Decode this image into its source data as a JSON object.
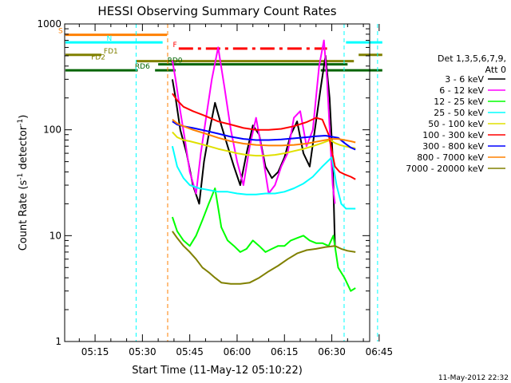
{
  "chart_data": {
    "type": "line",
    "title": "HESSI Observing Summary Count Rates",
    "xlabel": "Start Time (11-May-12 05:10:22)",
    "ylabel_main": "Count Rate (s",
    "ylabel_sup1": "-1",
    "ylabel_mid": " detector",
    "ylabel_sup2": "-1",
    "ylabel_end": ")",
    "timestamp": "11-May-2012 22:32",
    "y_scale": "log",
    "ylim": [
      1,
      1000
    ],
    "xlim_minutes": [
      5.37,
      102.0
    ],
    "x_origin": "05:10:22",
    "y_ticks": [
      {
        "label": "1",
        "value": 1
      },
      {
        "label": "10",
        "value": 10
      },
      {
        "label": "100",
        "value": 100
      },
      {
        "label": "1000",
        "value": 1000
      }
    ],
    "x_ticks": [
      {
        "label": "05:15",
        "minute": 15
      },
      {
        "label": "05:30",
        "minute": 30
      },
      {
        "label": "05:45",
        "minute": 45
      },
      {
        "label": "06:00",
        "minute": 60
      },
      {
        "label": "06:15",
        "minute": 75
      },
      {
        "label": "06:30",
        "minute": 90
      },
      {
        "label": "06:45",
        "minute": 105
      }
    ],
    "legend": {
      "header": [
        "Det 1,3,5,6,7,9,",
        "Att 0"
      ],
      "entries": [
        {
          "label": "3 - 6 keV",
          "color": "#000000"
        },
        {
          "label": "6 - 12 keV",
          "color": "#ff00ff"
        },
        {
          "label": "12 - 25 keV",
          "color": "#00ff00"
        },
        {
          "label": "25 - 50 keV",
          "color": "#00ffff"
        },
        {
          "label": "50 - 100 keV",
          "color": "#e0e000"
        },
        {
          "label": "100 - 300 keV",
          "color": "#ff0000"
        },
        {
          "label": "300 - 800 keV",
          "color": "#0000ff"
        },
        {
          "label": "800 - 7000 keV",
          "color": "#ff8000"
        },
        {
          "label": "7000 - 20000 keV",
          "color": "#808000"
        }
      ]
    },
    "flag_bars": [
      {
        "label": "S",
        "color": "#ff8000",
        "segments": [
          [
            5.6,
            37.8
          ]
        ],
        "y": 790,
        "dashed": false
      },
      {
        "label": "N",
        "color": "#00ffff",
        "segments": [
          [
            5.6,
            36.4
          ],
          [
            94.5,
            106.0
          ]
        ],
        "y": 670,
        "dashed": false
      },
      {
        "label": "F",
        "color": "#ff0000",
        "segments": [
          [
            41.5,
            88.5
          ]
        ],
        "y": 585,
        "dashed": true
      },
      {
        "label": "FD1",
        "color": "#808000",
        "segments": [
          [
            5.6,
            17.0
          ],
          [
            98.5,
            106.0
          ]
        ],
        "y": 510,
        "dashed": false
      },
      {
        "label": "FD2",
        "color": "#808000",
        "segments": [
          [
            28.0,
            97.0
          ]
        ],
        "y": 445,
        "dashed": false
      },
      {
        "label": "RD0",
        "color": "#006400",
        "segments": [
          [
            35.0,
            95.0
          ]
        ],
        "y": 415,
        "dashed": false
      },
      {
        "label": "RD6",
        "color": "#006400",
        "segments": [
          [
            5.6,
            28.5
          ],
          [
            34.0,
            40.5
          ],
          [
            86.5,
            106.0
          ]
        ],
        "y": 365,
        "dashed": false
      }
    ],
    "vlines": [
      {
        "minute": 28.0,
        "color": "#00ffff"
      },
      {
        "minute": 38.0,
        "color": "#ff8000"
      },
      {
        "minute": 93.9,
        "color": "#00ffff"
      },
      {
        "minute": 104.5,
        "color": "#00ffff"
      }
    ],
    "series": [
      {
        "name": "3 - 6 keV",
        "color": "#000000",
        "x": [
          39.5,
          40.5,
          42,
          44,
          46,
          48,
          49.5,
          51,
          53,
          55,
          57,
          59,
          61,
          63,
          65,
          67,
          69,
          71,
          73,
          75,
          77,
          79,
          81,
          83,
          85,
          86.5,
          88,
          89.3,
          90.2,
          91
        ],
        "y": [
          300,
          200,
          100,
          60,
          30,
          20,
          50,
          90,
          180,
          110,
          70,
          45,
          30,
          60,
          110,
          90,
          45,
          35,
          40,
          55,
          90,
          120,
          60,
          45,
          120,
          250,
          500,
          200,
          60,
          8
        ]
      },
      {
        "name": "6 - 12 keV",
        "color": "#ff00ff",
        "x": [
          39.5,
          40.5,
          42,
          43.5,
          45,
          47,
          48.5,
          50,
          52,
          54,
          56,
          58,
          60,
          62,
          64,
          66,
          68,
          70,
          72,
          74,
          76,
          78,
          80,
          82,
          84,
          86,
          87.5,
          88.5,
          89.5,
          90.3,
          91
        ],
        "y": [
          450,
          300,
          150,
          80,
          40,
          25,
          60,
          120,
          300,
          600,
          250,
          100,
          50,
          30,
          70,
          130,
          60,
          25,
          30,
          45,
          60,
          130,
          150,
          70,
          100,
          400,
          700,
          300,
          80,
          30,
          20
        ]
      },
      {
        "name": "12 - 25 keV",
        "color": "#00ff00",
        "x": [
          39.5,
          41,
          43,
          45,
          47,
          49,
          51,
          53,
          55,
          57,
          59,
          61,
          63,
          65,
          67,
          69,
          71,
          73,
          75,
          77,
          79,
          81,
          83,
          85,
          87,
          89,
          90.5,
          92,
          94,
          96,
          97.5
        ],
        "y": [
          15,
          11,
          9,
          8,
          10,
          14,
          20,
          28,
          12,
          9,
          8,
          7,
          7.5,
          9,
          8,
          7,
          7.5,
          8,
          8,
          9,
          9.5,
          10,
          9,
          8.5,
          8.5,
          8,
          10,
          5,
          4,
          3,
          3.2
        ]
      },
      {
        "name": "25 - 50 keV",
        "color": "#00ffff",
        "x": [
          39.5,
          41,
          43,
          45,
          48,
          51,
          54,
          57,
          60,
          63,
          66,
          69,
          72,
          75,
          78,
          81,
          84,
          87,
          90,
          91.5,
          93,
          94.5,
          96,
          97.5
        ],
        "y": [
          70,
          45,
          35,
          30,
          28,
          27,
          26,
          26,
          25,
          24.5,
          24.5,
          25,
          25,
          26,
          28,
          31,
          36,
          45,
          55,
          30,
          20,
          18,
          18,
          18
        ]
      },
      {
        "name": "50 - 100 keV",
        "color": "#e0e000",
        "x": [
          39.5,
          41,
          43,
          45,
          48,
          51,
          54,
          57,
          60,
          63,
          66,
          69,
          72,
          75,
          78,
          81,
          84,
          87,
          89.5,
          91,
          92.5,
          94,
          96,
          97.5
        ],
        "y": [
          95,
          85,
          80,
          78,
          74,
          70,
          66,
          63,
          60,
          58,
          57,
          57,
          58,
          60,
          63,
          66,
          70,
          75,
          80,
          75,
          72,
          70,
          68,
          67
        ]
      },
      {
        "name": "100 - 300 keV",
        "color": "#ff0000",
        "x": [
          39.5,
          41,
          43,
          46,
          50,
          54,
          58,
          62,
          66,
          70,
          74,
          78,
          82,
          85,
          87,
          89,
          91,
          92.5,
          94,
          96,
          97.5
        ],
        "y": [
          220,
          190,
          165,
          150,
          135,
          120,
          112,
          104,
          100,
          100,
          102,
          108,
          118,
          130,
          125,
          90,
          45,
          40,
          38,
          36,
          34
        ]
      },
      {
        "name": "300 - 800 keV",
        "color": "#0000ff",
        "x": [
          39.5,
          41,
          43,
          46,
          50,
          54,
          58,
          62,
          66,
          70,
          74,
          78,
          82,
          85,
          88,
          90,
          92,
          94,
          96,
          97.5
        ],
        "y": [
          120,
          112,
          108,
          104,
          98,
          92,
          86,
          82,
          80,
          80,
          81,
          83,
          85,
          87,
          88,
          86,
          84,
          75,
          68,
          65
        ]
      },
      {
        "name": "800 - 7000 keV",
        "color": "#ff8000",
        "x": [
          39.5,
          41,
          43,
          46,
          50,
          54,
          58,
          62,
          66,
          70,
          74,
          78,
          82,
          85,
          88,
          90,
          92,
          94,
          96,
          97.5
        ],
        "y": [
          125,
          115,
          108,
          100,
          92,
          84,
          78,
          74,
          72,
          71,
          71,
          72,
          74,
          77,
          80,
          82,
          82,
          80,
          78,
          76
        ]
      },
      {
        "name": "7000 - 20000 keV",
        "color": "#808000",
        "x": [
          39.5,
          41,
          43,
          45,
          47,
          49,
          51,
          53,
          55,
          58,
          61,
          64,
          67,
          70,
          73,
          76,
          79,
          82,
          85,
          88,
          91,
          93,
          95,
          97.5
        ],
        "y": [
          11,
          9.5,
          8,
          7,
          6,
          5,
          4.5,
          4,
          3.6,
          3.5,
          3.5,
          3.6,
          4,
          4.6,
          5.2,
          6,
          6.8,
          7.3,
          7.5,
          7.8,
          8,
          7.5,
          7.2,
          7
        ]
      }
    ]
  }
}
